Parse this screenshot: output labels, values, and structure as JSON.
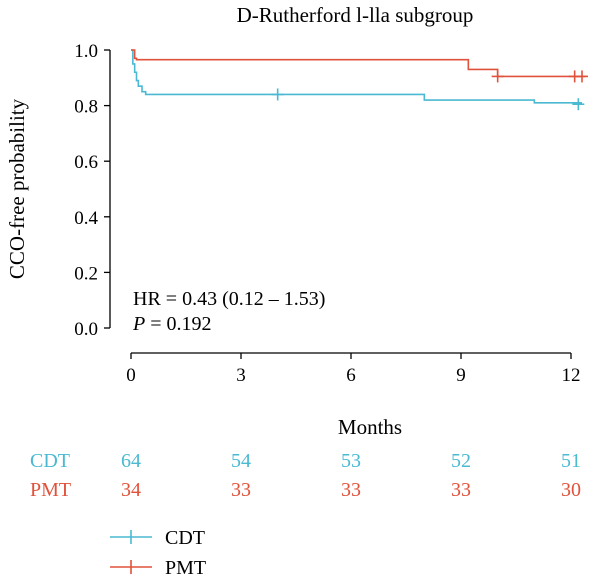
{
  "chart_data": {
    "type": "line",
    "title": "D-Rutherford l-lla subgroup",
    "xlabel": "Months",
    "ylabel": "CCO-free probability",
    "xlim": [
      -0.3,
      12.5
    ],
    "ylim": [
      -0.03,
      1.03
    ],
    "xticks": [
      "0",
      "3",
      "6",
      "9",
      "12"
    ],
    "yticks": [
      "0.0",
      "0.2",
      "0.4",
      "0.6",
      "0.8",
      "1.0"
    ],
    "annotation": {
      "hr_text": "HR = 0.43 (0.12 – 1.53)",
      "p_label": "P",
      "p_text": " = 0.192"
    },
    "series": [
      {
        "name": "CDT",
        "color": "#4ab9d1",
        "steps": [
          [
            0,
            1.0
          ],
          [
            0.05,
            0.95
          ],
          [
            0.1,
            0.92
          ],
          [
            0.15,
            0.89
          ],
          [
            0.2,
            0.87
          ],
          [
            0.3,
            0.85
          ],
          [
            0.4,
            0.84
          ],
          [
            8.0,
            0.82
          ],
          [
            11.0,
            0.81
          ],
          [
            12.3,
            0.81
          ]
        ],
        "censors": [
          [
            4.0,
            0.84
          ],
          [
            12.2,
            0.805
          ]
        ]
      },
      {
        "name": "PMT",
        "color": "#e0523b",
        "steps": [
          [
            0,
            1.0
          ],
          [
            0.1,
            0.97
          ],
          [
            0.15,
            0.965
          ],
          [
            9.2,
            0.93
          ],
          [
            10.0,
            0.905
          ],
          [
            12.4,
            0.905
          ]
        ],
        "censors": [
          [
            10.0,
            0.905
          ],
          [
            12.1,
            0.905
          ],
          [
            12.3,
            0.905
          ]
        ]
      }
    ],
    "risk_table": {
      "times": [
        0,
        3,
        6,
        9,
        12
      ],
      "rows": [
        {
          "name": "CDT",
          "color": "#4ab9d1",
          "counts": [
            "64",
            "54",
            "53",
            "52",
            "51"
          ]
        },
        {
          "name": "PMT",
          "color": "#e0523b",
          "counts": [
            "34",
            "33",
            "33",
            "33",
            "30"
          ]
        }
      ]
    },
    "legend": [
      {
        "name": "CDT",
        "color": "#4ab9d1"
      },
      {
        "name": "PMT",
        "color": "#e0523b"
      }
    ]
  }
}
